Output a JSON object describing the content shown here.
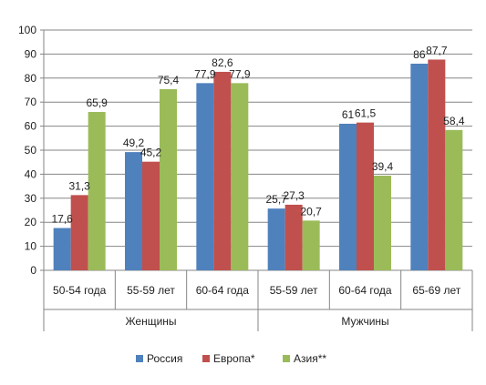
{
  "chart_data": {
    "type": "bar",
    "title": "",
    "xlabel": "",
    "ylabel": "",
    "ylim": [
      0,
      100
    ],
    "yticks": [
      0,
      10,
      20,
      30,
      40,
      50,
      60,
      70,
      80,
      90,
      100
    ],
    "grid": true,
    "legend_position": "bottom",
    "groups": [
      {
        "label": "Женщины",
        "categories": [
          "50-54 года",
          "55-59 лет",
          "60-64 года"
        ]
      },
      {
        "label": "Мужчины",
        "categories": [
          "55-59 лет",
          "60-64 года",
          "65-69 лет"
        ]
      }
    ],
    "categories": [
      "50-54 года",
      "55-59 лет",
      "60-64 года",
      "55-59 лет",
      "60-64 года",
      "65-69 лет"
    ],
    "series": [
      {
        "name": "Россия",
        "color": "#4F81BD",
        "values": [
          17.6,
          49.2,
          77.9,
          25.7,
          61,
          86
        ],
        "labels": [
          "17,6",
          "49,2",
          "77,9",
          "25,7",
          "61",
          "86"
        ]
      },
      {
        "name": "Европа*",
        "color": "#C0504D",
        "values": [
          31.3,
          45.2,
          82.6,
          27.3,
          61.5,
          87.7
        ],
        "labels": [
          "31,3",
          "45,2",
          "82,6",
          "27,3",
          "61,5",
          "87,7"
        ]
      },
      {
        "name": "Азия**",
        "color": "#9BBB59",
        "values": [
          65.9,
          75.4,
          77.9,
          20.7,
          39.4,
          58.4
        ],
        "labels": [
          "65,9",
          "75,4",
          "77,9",
          "20,7",
          "39,4",
          "58,4"
        ]
      }
    ]
  }
}
